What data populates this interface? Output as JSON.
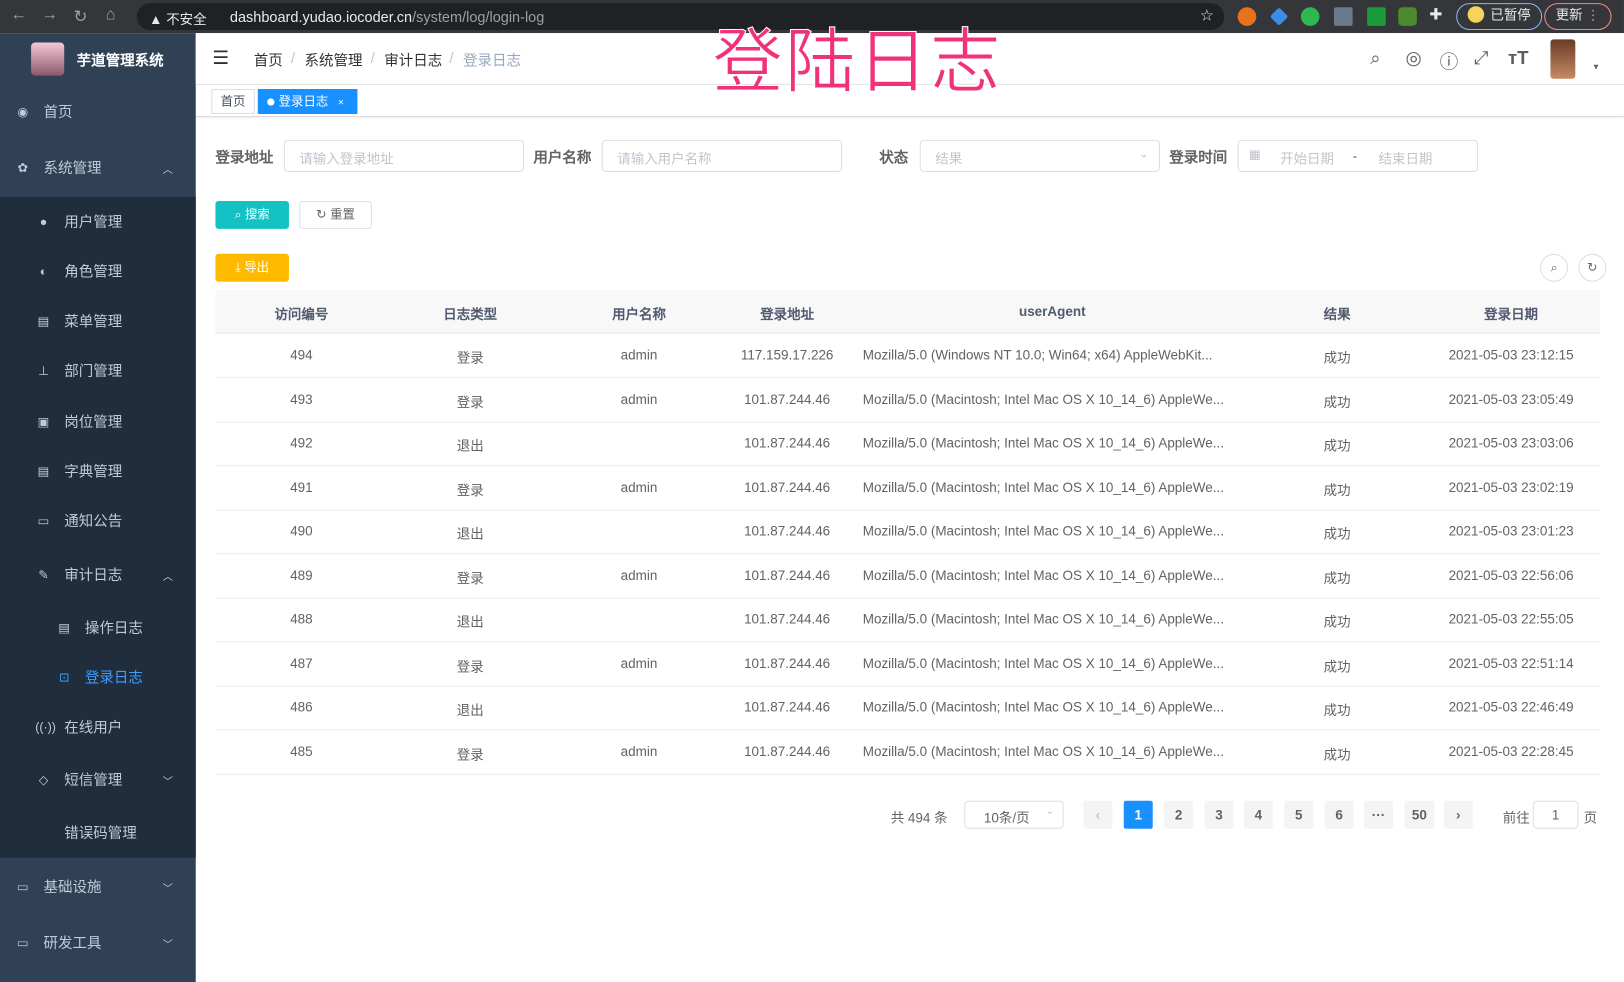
{
  "browser": {
    "insecure": "不安全",
    "url_host": "dashboard.yudao.iocoder.cn",
    "url_path": "/system/log/login-log",
    "profile": "已暂停",
    "update": "更新"
  },
  "overlay_title": "登陆日志",
  "app": {
    "title": "芋道管理系统"
  },
  "sidebar": {
    "items": [
      {
        "label": "首页",
        "icon": "dashboard-icon"
      },
      {
        "label": "系统管理",
        "icon": "gear-icon",
        "expanded": true
      },
      {
        "label": "用户管理",
        "icon": "user-icon"
      },
      {
        "label": "角色管理",
        "icon": "peoples-icon"
      },
      {
        "label": "菜单管理",
        "icon": "tree-table-icon"
      },
      {
        "label": "部门管理",
        "icon": "tree-icon"
      },
      {
        "label": "岗位管理",
        "icon": "post-icon"
      },
      {
        "label": "字典管理",
        "icon": "dict-icon"
      },
      {
        "label": "通知公告",
        "icon": "message-icon"
      },
      {
        "label": "审计日志",
        "icon": "log-icon",
        "expanded": true
      },
      {
        "label": "操作日志",
        "icon": "form-icon"
      },
      {
        "label": "登录日志",
        "icon": "logininfor-icon",
        "active": true
      },
      {
        "label": "在线用户",
        "icon": "online-icon"
      },
      {
        "label": "短信管理",
        "icon": "validCode-icon"
      },
      {
        "label": "错误码管理",
        "icon": "code-icon"
      },
      {
        "label": "基础设施",
        "icon": "monitor-icon"
      },
      {
        "label": "研发工具",
        "icon": "tool-icon"
      }
    ]
  },
  "breadcrumb": [
    "首页",
    "系统管理",
    "审计日志",
    "登录日志"
  ],
  "tags": [
    {
      "label": "首页"
    },
    {
      "label": "登录日志",
      "active": true
    }
  ],
  "search": {
    "ip_label": "登录地址",
    "ip_placeholder": "请输入登录地址",
    "user_label": "用户名称",
    "user_placeholder": "请输入用户名称",
    "status_label": "状态",
    "status_placeholder": "结果",
    "time_label": "登录时间",
    "start_placeholder": "开始日期",
    "range_sep": "-",
    "end_placeholder": "结束日期",
    "search_btn": "搜索",
    "reset_btn": "重置",
    "export_btn": "导出"
  },
  "table": {
    "columns": [
      "访问编号",
      "日志类型",
      "用户名称",
      "登录地址",
      "userAgent",
      "结果",
      "登录日期"
    ],
    "rows": [
      [
        "494",
        "登录",
        "admin",
        "117.159.17.226",
        "Mozilla/5.0 (Windows NT 10.0; Win64; x64) AppleWebKit...",
        "成功",
        "2021-05-03 23:12:15"
      ],
      [
        "493",
        "登录",
        "admin",
        "101.87.244.46",
        "Mozilla/5.0 (Macintosh; Intel Mac OS X 10_14_6) AppleWe...",
        "成功",
        "2021-05-03 23:05:49"
      ],
      [
        "492",
        "退出",
        "",
        "101.87.244.46",
        "Mozilla/5.0 (Macintosh; Intel Mac OS X 10_14_6) AppleWe...",
        "成功",
        "2021-05-03 23:03:06"
      ],
      [
        "491",
        "登录",
        "admin",
        "101.87.244.46",
        "Mozilla/5.0 (Macintosh; Intel Mac OS X 10_14_6) AppleWe...",
        "成功",
        "2021-05-03 23:02:19"
      ],
      [
        "490",
        "退出",
        "",
        "101.87.244.46",
        "Mozilla/5.0 (Macintosh; Intel Mac OS X 10_14_6) AppleWe...",
        "成功",
        "2021-05-03 23:01:23"
      ],
      [
        "489",
        "登录",
        "admin",
        "101.87.244.46",
        "Mozilla/5.0 (Macintosh; Intel Mac OS X 10_14_6) AppleWe...",
        "成功",
        "2021-05-03 22:56:06"
      ],
      [
        "488",
        "退出",
        "",
        "101.87.244.46",
        "Mozilla/5.0 (Macintosh; Intel Mac OS X 10_14_6) AppleWe...",
        "成功",
        "2021-05-03 22:55:05"
      ],
      [
        "487",
        "登录",
        "admin",
        "101.87.244.46",
        "Mozilla/5.0 (Macintosh; Intel Mac OS X 10_14_6) AppleWe...",
        "成功",
        "2021-05-03 22:51:14"
      ],
      [
        "486",
        "退出",
        "",
        "101.87.244.46",
        "Mozilla/5.0 (Macintosh; Intel Mac OS X 10_14_6) AppleWe...",
        "成功",
        "2021-05-03 22:46:49"
      ],
      [
        "485",
        "登录",
        "admin",
        "101.87.244.46",
        "Mozilla/5.0 (Macintosh; Intel Mac OS X 10_14_6) AppleWe...",
        "成功",
        "2021-05-03 22:28:45"
      ]
    ]
  },
  "pagination": {
    "total": "共 494 条",
    "page_size": "10条/页",
    "pages": [
      "1",
      "2",
      "3",
      "4",
      "5",
      "6",
      "···",
      "50"
    ],
    "current": "1",
    "goto_prefix": "前往",
    "goto_value": "1",
    "goto_suffix": "页"
  },
  "colors": {
    "sidebar": "#304156",
    "submenu": "#1f2d3d",
    "primary": "#1890ff",
    "search_btn": "#13c2c2",
    "export_btn": "#ffba00",
    "overlay": "#f0327a"
  }
}
